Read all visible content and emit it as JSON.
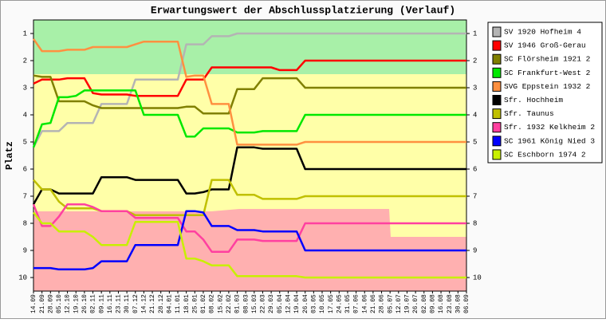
{
  "chart_data": {
    "type": "line",
    "title": "Erwartungswert der Abschlussplatzierung (Verlauf)",
    "y_label": "Platz",
    "categories": [
      "14.09",
      "21.09",
      "28.09",
      "05.10",
      "12.10",
      "19.10",
      "26.10",
      "02.11",
      "09.11",
      "16.11",
      "23.11",
      "30.11",
      "07.12",
      "14.12",
      "21.12",
      "28.12",
      "04.01",
      "11.01",
      "18.01",
      "25.01",
      "01.02",
      "08.02",
      "15.02",
      "22.02",
      "01.03",
      "08.03",
      "15.03",
      "22.03",
      "29.03",
      "05.04",
      "12.04",
      "19.04",
      "26.04",
      "03.05",
      "10.05",
      "17.05",
      "24.05",
      "31.05",
      "07.06",
      "14.06",
      "21.06",
      "28.06",
      "05.07",
      "12.07",
      "19.07",
      "26.07",
      "02.08",
      "09.08",
      "16.08",
      "23.08",
      "30.08",
      "06.09"
    ],
    "ylim": [
      10.5,
      0.5
    ],
    "yticks": [
      1,
      2,
      3,
      4,
      5,
      6,
      7,
      8,
      9,
      10
    ],
    "legend": "right",
    "series": [
      {
        "name": "SV 1920 Hofheim 4",
        "color": "#b4b4b4",
        "values": [
          5.2,
          4.6,
          4.6,
          4.6,
          4.3,
          4.3,
          4.3,
          4.3,
          3.6,
          3.6,
          3.6,
          3.6,
          2.7,
          2.7,
          2.7,
          2.7,
          2.7,
          2.7,
          1.4,
          1.4,
          1.4,
          1.1,
          1.1,
          1.1,
          1,
          1,
          1,
          1,
          1,
          1,
          1,
          1,
          1,
          1,
          1,
          1,
          1,
          1,
          1,
          1,
          1,
          1,
          1,
          1,
          1,
          1,
          1,
          1,
          1,
          1,
          1,
          1
        ]
      },
      {
        "name": "SV 1946 Groß-Gerau",
        "color": "#ff0000",
        "values": [
          2.85,
          2.7,
          2.7,
          2.7,
          2.65,
          2.65,
          2.65,
          3.2,
          3.25,
          3.25,
          3.25,
          3.25,
          3.3,
          3.3,
          3.3,
          3.3,
          3.3,
          3.3,
          2.7,
          2.7,
          2.7,
          2.25,
          2.25,
          2.25,
          2.25,
          2.25,
          2.25,
          2.25,
          2.25,
          2.35,
          2.35,
          2.35,
          2,
          2,
          2,
          2,
          2,
          2,
          2,
          2,
          2,
          2,
          2,
          2,
          2,
          2,
          2,
          2,
          2,
          2,
          2,
          2
        ]
      },
      {
        "name": "SC Flörsheim 1921 2",
        "color": "#808000",
        "values": [
          2.55,
          2.6,
          2.6,
          3.5,
          3.5,
          3.5,
          3.5,
          3.65,
          3.75,
          3.75,
          3.75,
          3.75,
          3.75,
          3.75,
          3.75,
          3.75,
          3.75,
          3.75,
          3.7,
          3.7,
          3.95,
          3.95,
          3.95,
          3.95,
          3.05,
          3.05,
          3.05,
          2.65,
          2.65,
          2.65,
          2.65,
          2.65,
          3,
          3,
          3,
          3,
          3,
          3,
          3,
          3,
          3,
          3,
          3,
          3,
          3,
          3,
          3,
          3,
          3,
          3,
          3,
          3
        ]
      },
      {
        "name": "SC Frankfurt-West 2",
        "color": "#00e800",
        "values": [
          5.2,
          4.35,
          4.3,
          3.35,
          3.35,
          3.3,
          3.1,
          3.1,
          3.1,
          3.1,
          3.1,
          3.1,
          3.1,
          4,
          4,
          4,
          4,
          4,
          4.8,
          4.8,
          4.5,
          4.5,
          4.5,
          4.5,
          4.65,
          4.65,
          4.65,
          4.6,
          4.6,
          4.6,
          4.6,
          4.6,
          4,
          4,
          4,
          4,
          4,
          4,
          4,
          4,
          4,
          4,
          4,
          4,
          4,
          4,
          4,
          4,
          4,
          4,
          4,
          4
        ]
      },
      {
        "name": "SVG Eppstein 1932 2",
        "color": "#ff9040",
        "values": [
          1.2,
          1.65,
          1.65,
          1.65,
          1.6,
          1.6,
          1.6,
          1.5,
          1.5,
          1.5,
          1.5,
          1.5,
          1.4,
          1.3,
          1.3,
          1.3,
          1.3,
          1.3,
          2.6,
          2.55,
          2.55,
          3.6,
          3.6,
          3.6,
          5.1,
          5.1,
          5.1,
          5.1,
          5.1,
          5.1,
          5.1,
          5.1,
          5,
          5,
          5,
          5,
          5,
          5,
          5,
          5,
          5,
          5,
          5,
          5,
          5,
          5,
          5,
          5,
          5,
          5,
          5,
          5
        ]
      },
      {
        "name": "Sfr. Hochheim",
        "color": "#000000",
        "values": [
          7.3,
          6.75,
          6.75,
          6.9,
          6.9,
          6.9,
          6.9,
          6.9,
          6.3,
          6.3,
          6.3,
          6.3,
          6.4,
          6.4,
          6.4,
          6.4,
          6.4,
          6.4,
          6.9,
          6.9,
          6.85,
          6.75,
          6.75,
          6.75,
          5.2,
          5.2,
          5.2,
          5.25,
          5.25,
          5.25,
          5.25,
          5.25,
          6,
          6,
          6,
          6,
          6,
          6,
          6,
          6,
          6,
          6,
          6,
          6,
          6,
          6,
          6,
          6,
          6,
          6,
          6,
          6
        ]
      },
      {
        "name": "Sfr. Taunus",
        "color": "#c0c000",
        "values": [
          6.4,
          6.75,
          6.75,
          7.2,
          7.45,
          7.45,
          7.45,
          7.45,
          7.55,
          7.55,
          7.55,
          7.55,
          7.7,
          7.7,
          7.7,
          7.7,
          7.7,
          7.7,
          7.7,
          7.7,
          7.7,
          6.4,
          6.4,
          6.4,
          6.95,
          6.95,
          6.95,
          7.1,
          7.1,
          7.1,
          7.1,
          7.1,
          7,
          7,
          7,
          7,
          7,
          7,
          7,
          7,
          7,
          7,
          7,
          7,
          7,
          7,
          7,
          7,
          7,
          7,
          7,
          7
        ]
      },
      {
        "name": "Sfr. 1932 Kelkheim 2",
        "color": "#ff40a0",
        "values": [
          7.3,
          8.1,
          8.1,
          7.75,
          7.3,
          7.3,
          7.3,
          7.4,
          7.55,
          7.55,
          7.55,
          7.55,
          7.8,
          7.8,
          7.8,
          7.8,
          7.8,
          7.8,
          8.3,
          8.3,
          8.6,
          9.05,
          9.05,
          9.05,
          8.6,
          8.6,
          8.6,
          8.65,
          8.65,
          8.65,
          8.65,
          8.65,
          8,
          8,
          8,
          8,
          8,
          8,
          8,
          8,
          8,
          8,
          8,
          8,
          8,
          8,
          8,
          8,
          8,
          8,
          8,
          8
        ]
      },
      {
        "name": "SC 1961 König Nied 3",
        "color": "#0000ff",
        "values": [
          9.65,
          9.65,
          9.65,
          9.7,
          9.7,
          9.7,
          9.7,
          9.65,
          9.4,
          9.4,
          9.4,
          9.4,
          8.8,
          8.8,
          8.8,
          8.8,
          8.8,
          8.8,
          7.55,
          7.55,
          7.6,
          8.1,
          8.1,
          8.1,
          8.25,
          8.25,
          8.25,
          8.3,
          8.3,
          8.3,
          8.3,
          8.3,
          9,
          9,
          9,
          9,
          9,
          9,
          9,
          9,
          9,
          9,
          9,
          9,
          9,
          9,
          9,
          9,
          9,
          9,
          9,
          9
        ]
      },
      {
        "name": "SC Eschborn 1974 2",
        "color": "#c8f000",
        "values": [
          7.6,
          8,
          8,
          8.3,
          8.3,
          8.3,
          8.3,
          8.5,
          8.8,
          8.8,
          8.8,
          8.8,
          7.95,
          7.95,
          7.95,
          7.95,
          7.95,
          7.95,
          9.3,
          9.3,
          9.4,
          9.55,
          9.55,
          9.55,
          9.95,
          9.95,
          9.95,
          9.95,
          9.95,
          9.95,
          9.95,
          9.95,
          10,
          10,
          10,
          10,
          10,
          10,
          10,
          10,
          10,
          10,
          10,
          10,
          10,
          10,
          10,
          10,
          10,
          10,
          10,
          10
        ]
      }
    ]
  }
}
